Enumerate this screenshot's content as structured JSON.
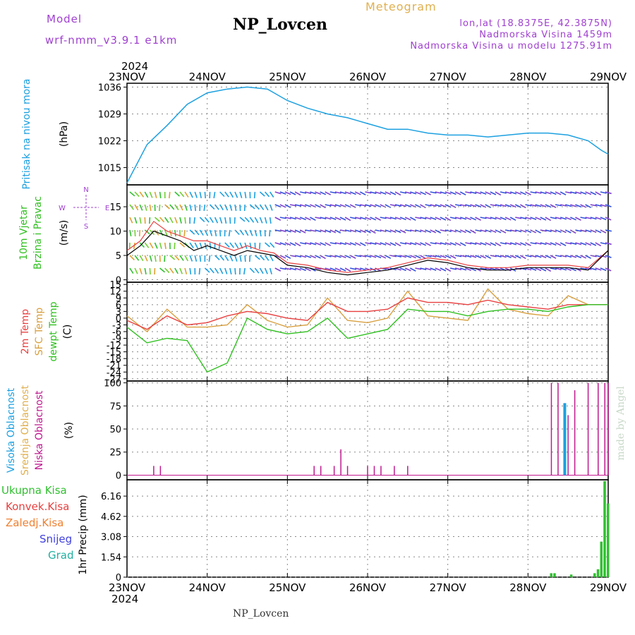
{
  "header": {
    "model_label": "Model",
    "model_name": "wrf-nmm_v3.9.1  e1km",
    "station": "NP_Lovcen",
    "product": "Meteogram",
    "lonlat": "lon,lat (18.8375E, 42.3875N)",
    "elevation": "Nadmorska Visina 1459m",
    "model_elevation": "Nadmorska Visina u modelu 1275.91m",
    "footer": "NP_Lovcen",
    "watermark": "made by Angel"
  },
  "colors": {
    "pressure": "#1ca0e0",
    "temp2m": "#e84040",
    "sfc_temp": "#d8a040",
    "dewpoint": "#30c020",
    "cloud_high": "#1ca0e0",
    "cloud_mid": "#e0b050",
    "cloud_low": "#c01890",
    "total_precip": "#30c030",
    "title_purple": "#a040d0"
  },
  "time_axis": {
    "year": "2024",
    "days": [
      "23NOV",
      "24NOV",
      "25NOV",
      "26NOV",
      "27NOV",
      "28NOV",
      "29NOV"
    ],
    "start": "2024-11-23T00:00",
    "end": "2024-11-29T00:00"
  },
  "chart_data": [
    {
      "type": "line",
      "panel": "pressure",
      "ylabel": "Pritisak na nivou mora",
      "unit": "(hPa)",
      "yticks": [
        1015,
        1022,
        1029,
        1036
      ],
      "ylim": [
        1010.5,
        1037
      ],
      "x": [
        "2024-11-23T00",
        "2024-11-23T06",
        "2024-11-23T12",
        "2024-11-23T18",
        "2024-11-24T00",
        "2024-11-24T06",
        "2024-11-24T12",
        "2024-11-24T18",
        "2024-11-25T00",
        "2024-11-25T06",
        "2024-11-25T12",
        "2024-11-25T18",
        "2024-11-26T00",
        "2024-11-26T06",
        "2024-11-26T12",
        "2024-11-26T18",
        "2024-11-27T00",
        "2024-11-27T06",
        "2024-11-27T12",
        "2024-11-27T18",
        "2024-11-28T00",
        "2024-11-28T06",
        "2024-11-28T12",
        "2024-11-28T18",
        "2024-11-28T22",
        "2024-11-29T00"
      ],
      "series": [
        {
          "values": [
            1011,
            1021,
            1026,
            1031.5,
            1034.5,
            1035.5,
            1036,
            1035.5,
            1032.5,
            1030.5,
            1029,
            1028,
            1026.5,
            1025,
            1025,
            1024,
            1023.5,
            1023.5,
            1023,
            1023.5,
            1024,
            1024,
            1023.5,
            1022,
            1019.5,
            1018.5
          ]
        }
      ]
    },
    {
      "type": "line",
      "panel": "wind",
      "ylabel": "10m Vjetar Brzina i Pravac",
      "unit": "(m/s)",
      "yticks": [
        0,
        5,
        10,
        15
      ],
      "ylim": [
        -0.5,
        19.5
      ],
      "compass": {
        "n": "N",
        "e": "E",
        "s": "S",
        "w": "W"
      },
      "x": [
        "2024-11-23T00",
        "2024-11-23T04",
        "2024-11-23T08",
        "2024-11-23T12",
        "2024-11-23T16",
        "2024-11-23T20",
        "2024-11-24T00",
        "2024-11-24T04",
        "2024-11-24T08",
        "2024-11-24T12",
        "2024-11-24T16",
        "2024-11-24T20",
        "2024-11-25T00",
        "2024-11-25T06",
        "2024-11-25T12",
        "2024-11-25T18",
        "2024-11-26T00",
        "2024-11-26T06",
        "2024-11-26T12",
        "2024-11-26T18",
        "2024-11-27T00",
        "2024-11-27T06",
        "2024-11-27T12",
        "2024-11-27T18",
        "2024-11-28T00",
        "2024-11-28T06",
        "2024-11-28T12",
        "2024-11-28T18",
        "2024-11-29T00"
      ],
      "series": [
        {
          "name": "speed",
          "values": [
            5,
            7,
            10,
            9,
            8,
            6,
            7,
            6,
            5,
            6,
            5.5,
            5,
            3,
            2.5,
            1.5,
            1,
            1.5,
            2,
            3,
            4,
            3.5,
            2.5,
            2,
            2,
            2.5,
            2.5,
            2.5,
            2,
            6
          ]
        },
        {
          "name": "gust",
          "values": [
            6,
            8,
            12,
            10,
            9,
            8,
            8,
            7,
            6,
            7,
            6,
            5.5,
            3.5,
            3,
            2,
            1.5,
            2,
            2.5,
            3.5,
            4.5,
            4,
            3,
            2.5,
            2.5,
            3,
            3,
            3,
            2.5,
            6
          ]
        }
      ]
    },
    {
      "type": "line",
      "panel": "temperature",
      "ylabel": [
        "2m Temp",
        "SFC Temp",
        "dewpt Temp"
      ],
      "unit": "(C)",
      "yticks": [
        -27,
        -24,
        -21,
        -18,
        -15,
        -12,
        -9,
        -6,
        -3,
        0,
        3,
        6,
        9,
        12,
        15
      ],
      "ylim": [
        -28,
        16
      ],
      "x": [
        "2024-11-23T00",
        "2024-11-23T06",
        "2024-11-23T12",
        "2024-11-23T18",
        "2024-11-24T00",
        "2024-11-24T06",
        "2024-11-24T12",
        "2024-11-24T18",
        "2024-11-25T00",
        "2024-11-25T06",
        "2024-11-25T12",
        "2024-11-25T18",
        "2024-11-26T00",
        "2024-11-26T06",
        "2024-11-26T12",
        "2024-11-26T18",
        "2024-11-27T00",
        "2024-11-27T06",
        "2024-11-27T12",
        "2024-11-27T18",
        "2024-11-28T00",
        "2024-11-28T06",
        "2024-11-28T12",
        "2024-11-28T18",
        "2024-11-29T00"
      ],
      "series": [
        {
          "name": "2m Temp",
          "values": [
            -1,
            -5,
            1,
            -3,
            -2,
            1,
            3,
            2,
            0,
            -1,
            7,
            3,
            3,
            4,
            9,
            7,
            7,
            6,
            8,
            6,
            5,
            4,
            6,
            6,
            6
          ]
        },
        {
          "name": "SFC Temp",
          "values": [
            1,
            -6,
            4,
            -4,
            -4,
            -3,
            6,
            -1,
            -4,
            -3,
            9,
            -1,
            -2,
            0,
            12,
            1,
            0,
            -1,
            13,
            4,
            2,
            1,
            10,
            6,
            6
          ]
        },
        {
          "name": "dewpt Temp",
          "values": [
            -4,
            -11,
            -9,
            -10,
            -24,
            -20,
            0,
            -5,
            -7,
            -6,
            0,
            -9,
            -7,
            -5,
            4,
            3,
            3,
            1,
            3,
            4,
            4,
            3,
            5,
            6,
            6
          ]
        }
      ]
    },
    {
      "type": "bar",
      "panel": "clouds",
      "ylabel": [
        "Visoka Oblacnost",
        "Srednja Oblacnost",
        "Niska Oblacnost"
      ],
      "unit": "(%)",
      "yticks": [
        0,
        25,
        50,
        75,
        100
      ],
      "ylim": [
        -5,
        102
      ],
      "x": [
        "2024-11-23T08",
        "2024-11-23T10",
        "2024-11-25T08",
        "2024-11-25T10",
        "2024-11-25T14",
        "2024-11-25T16",
        "2024-11-25T18",
        "2024-11-26T00",
        "2024-11-26T02",
        "2024-11-26T04",
        "2024-11-26T08",
        "2024-11-26T12",
        "2024-11-28T07",
        "2024-11-28T09",
        "2024-11-28T11",
        "2024-11-28T12",
        "2024-11-28T14",
        "2024-11-28T18",
        "2024-11-28T21",
        "2024-11-28T23",
        "2024-11-29T00"
      ],
      "series": [
        {
          "name": "Niska Oblacnost",
          "values": [
            10,
            10,
            10,
            10,
            10,
            28,
            10,
            10,
            10,
            10,
            10,
            10,
            100,
            100,
            78,
            65,
            92,
            100,
            100,
            100,
            100
          ]
        },
        {
          "name": "Visoka Oblacnost",
          "values": [
            0,
            0,
            0,
            0,
            0,
            0,
            0,
            0,
            0,
            0,
            0,
            0,
            0,
            0,
            78,
            0,
            0,
            0,
            0,
            0,
            0
          ]
        }
      ]
    },
    {
      "type": "bar",
      "panel": "precip",
      "ylabel": [
        "Ukupna Kisa",
        "Konvek.Kisa",
        "Zaledj.Kisa",
        "Snijeg",
        "Grad"
      ],
      "unit": "1hr Precip (mm)",
      "yticks": [
        0,
        1.54,
        3.08,
        4.62,
        6.16
      ],
      "ylim": [
        0,
        7.4
      ],
      "x": [
        "2024-11-28T07",
        "2024-11-28T08",
        "2024-11-28T13",
        "2024-11-28T20",
        "2024-11-28T21",
        "2024-11-28T22",
        "2024-11-28T23",
        "2024-11-29T00"
      ],
      "series": [
        {
          "name": "Ukupna Kisa",
          "values": [
            0.3,
            0.3,
            0.2,
            0.3,
            0.6,
            2.7,
            7.3,
            5.6
          ]
        }
      ]
    }
  ]
}
